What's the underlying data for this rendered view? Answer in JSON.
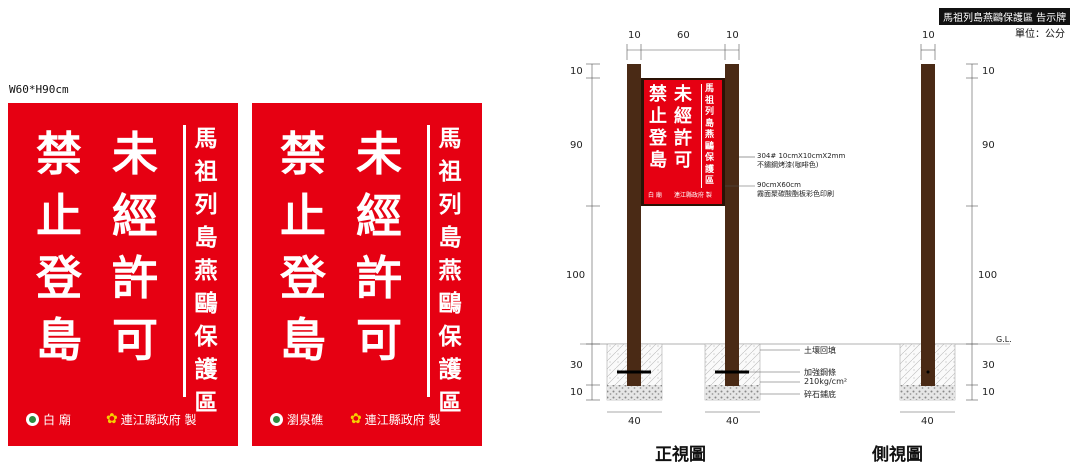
{
  "header": {
    "title": "馬祖列島燕鷗保護區 告示牌",
    "unit": "單位：公分"
  },
  "size_label": "W60*H90cm",
  "signs": [
    {
      "main_right": [
        "未",
        "經",
        "許",
        "可"
      ],
      "main_left": [
        "禁",
        "止",
        "登",
        "島"
      ],
      "vertical": [
        "馬",
        "祖",
        "列",
        "島",
        "燕",
        "鷗",
        "保",
        "護",
        "區"
      ],
      "footer_left": "白 廟",
      "footer_right": "連江縣政府 製"
    },
    {
      "main_right": [
        "未",
        "經",
        "許",
        "可"
      ],
      "main_left": [
        "禁",
        "止",
        "登",
        "島"
      ],
      "vertical": [
        "馬",
        "祖",
        "列",
        "島",
        "燕",
        "鷗",
        "保",
        "護",
        "區"
      ],
      "footer_left": "瀏泉礁",
      "footer_right": "連江縣政府 製"
    }
  ],
  "mini_sign": {
    "main_right": [
      "未",
      "經",
      "許",
      "可"
    ],
    "main_left": [
      "禁",
      "止",
      "登",
      "島"
    ],
    "vertical": [
      "馬",
      "祖",
      "列",
      "島",
      "燕",
      "鷗",
      "保",
      "護",
      "區"
    ],
    "footer_left": "白 廟",
    "footer_right": "連江縣政府 製"
  },
  "dimensions": {
    "top": [
      "10",
      "60",
      "10"
    ],
    "left": [
      "10",
      "90",
      "100",
      "30",
      "10"
    ],
    "right": [
      "10",
      "90",
      "100",
      "30",
      "10"
    ],
    "side_top": "10",
    "bottom_front": [
      "40",
      "40"
    ],
    "bottom_side": "40",
    "gl": "G.L."
  },
  "annotations": {
    "post_line1": "304# 10cmX10cmX2mm",
    "post_line2": "不鏽鋼烤漆(咖啡色)",
    "panel_line1": "90cmX60cm",
    "panel_line2": "霧面聚碳酸酯板彩色印刷",
    "soil": "土壤回填",
    "rebar": "加強鋼條",
    "concrete": "210kg/cm²",
    "gravel": "碎石鋪底"
  },
  "views": {
    "front": "正視圖",
    "side": "側視圖"
  },
  "colors": {
    "sign_red": "#e60012",
    "post_brown": "#4a2a15",
    "panel_dark": "#2a1205"
  }
}
